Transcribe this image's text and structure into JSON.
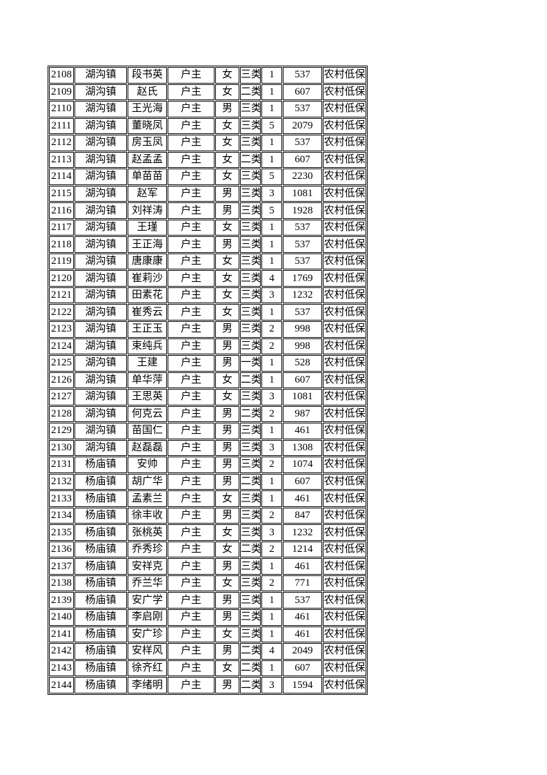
{
  "table": {
    "column_keys": [
      "serial",
      "town",
      "name",
      "relation",
      "gender",
      "category",
      "persons",
      "amount",
      "benefit"
    ],
    "border_color": "#000000",
    "text_color": "#000000",
    "rows": [
      [
        "2108",
        "湖沟镇",
        "段书英",
        "户主",
        "女",
        "三类",
        "1",
        "537",
        "农村低保"
      ],
      [
        "2109",
        "湖沟镇",
        "赵氏",
        "户主",
        "女",
        "二类",
        "1",
        "607",
        "农村低保"
      ],
      [
        "2110",
        "湖沟镇",
        "王光海",
        "户主",
        "男",
        "三类",
        "1",
        "537",
        "农村低保"
      ],
      [
        "2111",
        "湖沟镇",
        "董晓凤",
        "户主",
        "女",
        "三类",
        "5",
        "2079",
        "农村低保"
      ],
      [
        "2112",
        "湖沟镇",
        "房玉凤",
        "户主",
        "女",
        "三类",
        "1",
        "537",
        "农村低保"
      ],
      [
        "2113",
        "湖沟镇",
        "赵孟孟",
        "户主",
        "女",
        "二类",
        "1",
        "607",
        "农村低保"
      ],
      [
        "2114",
        "湖沟镇",
        "单苗苗",
        "户主",
        "女",
        "三类",
        "5",
        "2230",
        "农村低保"
      ],
      [
        "2115",
        "湖沟镇",
        "赵军",
        "户主",
        "男",
        "三类",
        "3",
        "1081",
        "农村低保"
      ],
      [
        "2116",
        "湖沟镇",
        "刘祥涛",
        "户主",
        "男",
        "三类",
        "5",
        "1928",
        "农村低保"
      ],
      [
        "2117",
        "湖沟镇",
        "王瑾",
        "户主",
        "女",
        "三类",
        "1",
        "537",
        "农村低保"
      ],
      [
        "2118",
        "湖沟镇",
        "王正海",
        "户主",
        "男",
        "三类",
        "1",
        "537",
        "农村低保"
      ],
      [
        "2119",
        "湖沟镇",
        "唐康康",
        "户主",
        "女",
        "三类",
        "1",
        "537",
        "农村低保"
      ],
      [
        "2120",
        "湖沟镇",
        "崔莉沙",
        "户主",
        "女",
        "三类",
        "4",
        "1769",
        "农村低保"
      ],
      [
        "2121",
        "湖沟镇",
        "田素花",
        "户主",
        "女",
        "三类",
        "3",
        "1232",
        "农村低保"
      ],
      [
        "2122",
        "湖沟镇",
        "崔秀云",
        "户主",
        "女",
        "三类",
        "1",
        "537",
        "农村低保"
      ],
      [
        "2123",
        "湖沟镇",
        "王正玉",
        "户主",
        "男",
        "三类",
        "2",
        "998",
        "农村低保"
      ],
      [
        "2124",
        "湖沟镇",
        "束纯兵",
        "户主",
        "男",
        "三类",
        "2",
        "998",
        "农村低保"
      ],
      [
        "2125",
        "湖沟镇",
        "王建",
        "户主",
        "男",
        "一类",
        "1",
        "528",
        "农村低保"
      ],
      [
        "2126",
        "湖沟镇",
        "单华萍",
        "户主",
        "女",
        "二类",
        "1",
        "607",
        "农村低保"
      ],
      [
        "2127",
        "湖沟镇",
        "王思英",
        "户主",
        "女",
        "三类",
        "3",
        "1081",
        "农村低保"
      ],
      [
        "2128",
        "湖沟镇",
        "何克云",
        "户主",
        "男",
        "二类",
        "2",
        "987",
        "农村低保"
      ],
      [
        "2129",
        "湖沟镇",
        "苗国仁",
        "户主",
        "男",
        "三类",
        "1",
        "461",
        "农村低保"
      ],
      [
        "2130",
        "湖沟镇",
        "赵磊磊",
        "户主",
        "男",
        "三类",
        "3",
        "1308",
        "农村低保"
      ],
      [
        "2131",
        "杨庙镇",
        "安帅",
        "户主",
        "男",
        "三类",
        "2",
        "1074",
        "农村低保"
      ],
      [
        "2132",
        "杨庙镇",
        "胡广华",
        "户主",
        "男",
        "二类",
        "1",
        "607",
        "农村低保"
      ],
      [
        "2133",
        "杨庙镇",
        "孟素兰",
        "户主",
        "女",
        "三类",
        "1",
        "461",
        "农村低保"
      ],
      [
        "2134",
        "杨庙镇",
        "徐丰收",
        "户主",
        "男",
        "三类",
        "2",
        "847",
        "农村低保"
      ],
      [
        "2135",
        "杨庙镇",
        "张桃英",
        "户主",
        "女",
        "三类",
        "3",
        "1232",
        "农村低保"
      ],
      [
        "2136",
        "杨庙镇",
        "乔秀珍",
        "户主",
        "女",
        "二类",
        "2",
        "1214",
        "农村低保"
      ],
      [
        "2137",
        "杨庙镇",
        "安祥克",
        "户主",
        "男",
        "三类",
        "1",
        "461",
        "农村低保"
      ],
      [
        "2138",
        "杨庙镇",
        "乔兰华",
        "户主",
        "女",
        "三类",
        "2",
        "771",
        "农村低保"
      ],
      [
        "2139",
        "杨庙镇",
        "安广学",
        "户主",
        "男",
        "三类",
        "1",
        "537",
        "农村低保"
      ],
      [
        "2140",
        "杨庙镇",
        "李启刚",
        "户主",
        "男",
        "三类",
        "1",
        "461",
        "农村低保"
      ],
      [
        "2141",
        "杨庙镇",
        "安广珍",
        "户主",
        "女",
        "三类",
        "1",
        "461",
        "农村低保"
      ],
      [
        "2142",
        "杨庙镇",
        "安样风",
        "户主",
        "男",
        "二类",
        "4",
        "2049",
        "农村低保"
      ],
      [
        "2143",
        "杨庙镇",
        "徐齐红",
        "户主",
        "女",
        "二类",
        "1",
        "607",
        "农村低保"
      ],
      [
        "2144",
        "杨庙镇",
        "李绪明",
        "户主",
        "男",
        "二类",
        "3",
        "1594",
        "农村低保"
      ]
    ]
  }
}
